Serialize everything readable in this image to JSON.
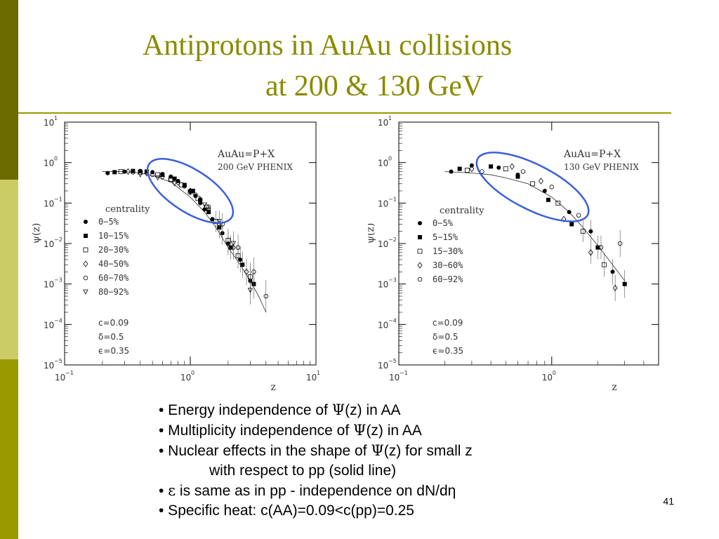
{
  "slide": {
    "title_line1": "Antiprotons in AuAu collisions",
    "title_line2": "at 200 & 130 GeV",
    "page_number": "41",
    "bullets": [
      {
        "prefix": "• Energy independence of ",
        "symbol": "Ψ",
        "suffix": "(z) in AA"
      },
      {
        "prefix": "• Multiplicity independence of ",
        "symbol": "Ψ",
        "suffix": "(z) in AA"
      },
      {
        "prefix": "• Nuclear effects in the shape of ",
        "symbol": "Ψ",
        "suffix": "(z) for small z"
      },
      {
        "prefix": "with respect to pp (solid line)",
        "symbol": "",
        "suffix": ""
      },
      {
        "prefix": "• ",
        "symbol": "ε",
        "suffix": " is same as in pp - independence on dN/dη"
      },
      {
        "prefix": "• Specific heat: c(AA)=0.09<c(pp)=0.25",
        "symbol": "",
        "suffix": ""
      }
    ]
  },
  "chart_data": [
    {
      "type": "scatter",
      "xscale": "log",
      "yscale": "log",
      "xlim": [
        0.1,
        10
      ],
      "ylim": [
        1e-05,
        10
      ],
      "xlabel": "z",
      "ylabel": "ψ(z)",
      "x_ticks": [
        "10",
        "10",
        "10"
      ],
      "x_tick_exps": [
        "−1",
        "0",
        "1"
      ],
      "y_ticks": [
        "10",
        "10",
        "10",
        "10",
        "10",
        "10",
        "10"
      ],
      "y_tick_exps": [
        "1",
        "0",
        "−1",
        "−2",
        "−3",
        "−4",
        "−5"
      ],
      "reaction": "AuAu=P+X",
      "energy": "200 GeV PHENIX",
      "legend_title": "centrality",
      "legend": [
        "0−5%",
        "10−15%",
        "20−30%",
        "40−50%",
        "60−70%",
        "80−92%"
      ],
      "params": [
        "c=0.09",
        "δ=0.5",
        "ϵ=0.35"
      ],
      "ellipse_center": [
        1.0,
        0.2
      ],
      "reference_line": {
        "x": [
          0.2,
          0.3,
          0.4,
          0.5,
          0.7,
          1.0,
          1.3,
          1.6,
          2.0,
          2.5,
          3.0,
          3.5,
          4.0
        ],
        "y": [
          0.6,
          0.6,
          0.55,
          0.48,
          0.33,
          0.14,
          0.06,
          0.025,
          0.008,
          0.003,
          0.0012,
          0.0005,
          0.0002
        ]
      },
      "series": [
        {
          "name": "0−5%",
          "x": [
            0.22,
            0.3,
            0.4,
            0.5,
            0.6,
            0.7,
            0.8,
            0.9,
            1.0,
            1.1,
            1.2,
            1.3,
            1.5,
            1.8,
            2.0,
            2.5,
            3.0
          ],
          "y": [
            0.55,
            0.6,
            0.62,
            0.58,
            0.52,
            0.45,
            0.35,
            0.27,
            0.2,
            0.15,
            0.1,
            0.07,
            0.04,
            0.018,
            0.01,
            0.004,
            0.0012
          ]
        },
        {
          "name": "10−15%",
          "x": [
            0.25,
            0.35,
            0.45,
            0.6,
            0.75,
            0.9,
            1.05,
            1.2,
            1.4,
            1.7,
            2.1,
            2.6,
            3.2
          ],
          "y": [
            0.58,
            0.62,
            0.6,
            0.5,
            0.4,
            0.28,
            0.2,
            0.12,
            0.06,
            0.025,
            0.008,
            0.003,
            0.001
          ]
        },
        {
          "name": "20−30%",
          "x": [
            0.28,
            0.4,
            0.55,
            0.7,
            0.85,
            1.0,
            1.15,
            1.35,
            1.6,
            2.0,
            2.4,
            3.0
          ],
          "y": [
            0.6,
            0.58,
            0.5,
            0.38,
            0.28,
            0.19,
            0.13,
            0.08,
            0.035,
            0.012,
            0.005,
            0.0015
          ]
        },
        {
          "name": "40−50%",
          "x": [
            0.32,
            0.45,
            0.6,
            0.8,
            1.0,
            1.2,
            1.4,
            1.7,
            2.2,
            2.8
          ],
          "y": [
            0.6,
            0.55,
            0.45,
            0.32,
            0.2,
            0.12,
            0.07,
            0.03,
            0.008,
            0.002
          ]
        },
        {
          "name": "60−70%",
          "x": [
            0.35,
            0.5,
            0.7,
            0.9,
            1.1,
            1.4,
            1.8,
            2.4,
            3.2,
            4.0
          ],
          "y": [
            0.58,
            0.5,
            0.38,
            0.26,
            0.16,
            0.08,
            0.03,
            0.008,
            0.002,
            0.0005
          ]
        },
        {
          "name": "80−92%",
          "x": [
            0.4,
            0.55,
            0.75,
            1.0,
            1.3,
            1.7,
            2.2,
            3.0
          ],
          "y": [
            0.5,
            0.42,
            0.3,
            0.18,
            0.09,
            0.035,
            0.01,
            0.0007
          ]
        }
      ]
    },
    {
      "type": "scatter",
      "xscale": "log",
      "yscale": "log",
      "xlim": [
        0.1,
        5
      ],
      "ylim": [
        1e-05,
        10
      ],
      "xlabel": "z",
      "ylabel": "ψ(z)",
      "x_ticks": [
        "10",
        "10"
      ],
      "x_tick_exps": [
        "−1",
        "0"
      ],
      "y_ticks": [
        "10",
        "10",
        "10",
        "10",
        "10",
        "10",
        "10"
      ],
      "y_tick_exps": [
        "1",
        "0",
        "−1",
        "−2",
        "−3",
        "−4",
        "−5"
      ],
      "reaction": "AuAu=P+X",
      "energy": "130 GeV PHENIX",
      "legend_title": "centrality",
      "legend": [
        "0−5%",
        "5−15%",
        "15−30%",
        "30−60%",
        "60−92%"
      ],
      "params": [
        "c=0.09",
        "δ=0.5",
        "ϵ=0.35"
      ],
      "ellipse_center": [
        0.75,
        0.25
      ],
      "reference_line": {
        "x": [
          0.2,
          0.3,
          0.4,
          0.5,
          0.7,
          1.0,
          1.3,
          1.6,
          2.0,
          2.5,
          3.0
        ],
        "y": [
          0.6,
          0.55,
          0.5,
          0.42,
          0.3,
          0.14,
          0.06,
          0.025,
          0.009,
          0.003,
          0.0012
        ]
      },
      "series": [
        {
          "name": "0−5%",
          "x": [
            0.22,
            0.3,
            0.45,
            0.6,
            0.9,
            1.3,
            1.8,
            2.5
          ],
          "y": [
            0.6,
            0.85,
            0.75,
            0.5,
            0.2,
            0.06,
            0.02,
            0.002
          ]
        },
        {
          "name": "5−15%",
          "x": [
            0.25,
            0.4,
            0.6,
            0.95,
            1.35,
            2.0,
            3.0
          ],
          "y": [
            0.7,
            0.8,
            0.45,
            0.12,
            0.03,
            0.008,
            0.001
          ]
        },
        {
          "name": "15−30%",
          "x": [
            0.28,
            0.5,
            0.75,
            1.1,
            1.6,
            2.2
          ],
          "y": [
            0.65,
            0.7,
            0.3,
            0.1,
            0.02,
            0.003
          ]
        },
        {
          "name": "30−60%",
          "x": [
            0.3,
            0.55,
            0.85,
            1.2,
            1.8,
            2.6
          ],
          "y": [
            0.7,
            0.8,
            0.35,
            0.04,
            0.006,
            0.0008
          ]
        },
        {
          "name": "60−92%",
          "x": [
            0.35,
            0.65,
            1.0,
            1.5,
            2.1,
            2.8
          ],
          "y": [
            0.6,
            0.6,
            0.25,
            0.05,
            0.008,
            0.01
          ]
        }
      ]
    }
  ]
}
